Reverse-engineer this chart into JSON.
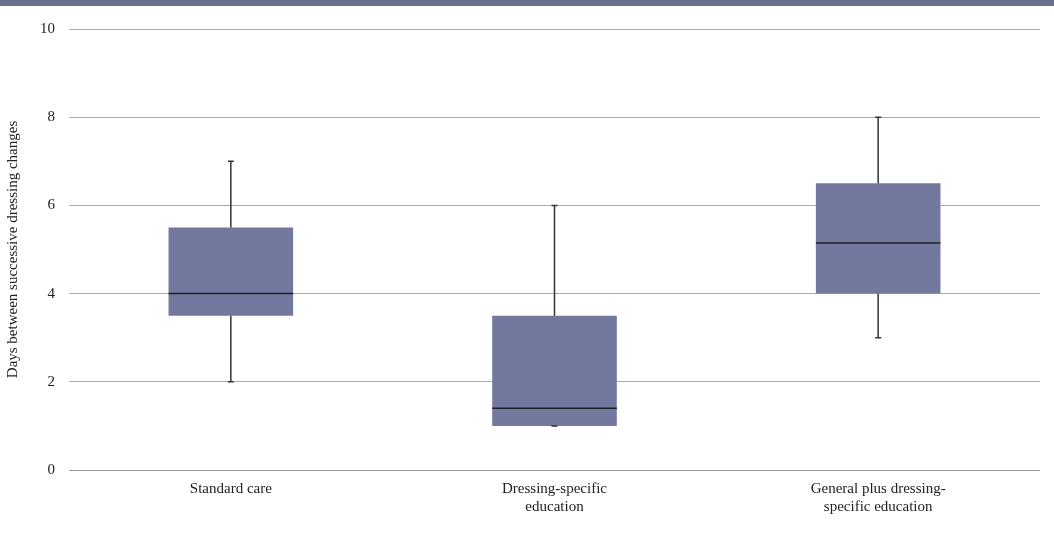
{
  "chart_data": {
    "type": "box",
    "ylabel": "Days between successive dressing changes",
    "categories": [
      "Standard care",
      "Dressing-specific education",
      "General plus dressing-specific education"
    ],
    "boxes": [
      {
        "low": 2,
        "q1": 3.5,
        "median": 4,
        "q3": 5.5,
        "high": 7
      },
      {
        "low": 1,
        "q1": 1,
        "median": 1.4,
        "q3": 3.5,
        "high": 6
      },
      {
        "low": 3,
        "q1": 4,
        "median": 5.15,
        "q3": 6.5,
        "high": 8
      }
    ],
    "color": "#72789e",
    "ylim": [
      0,
      10
    ],
    "yticks": [
      0,
      2,
      4,
      6,
      8,
      10
    ],
    "grid": "y",
    "legend": false
  }
}
